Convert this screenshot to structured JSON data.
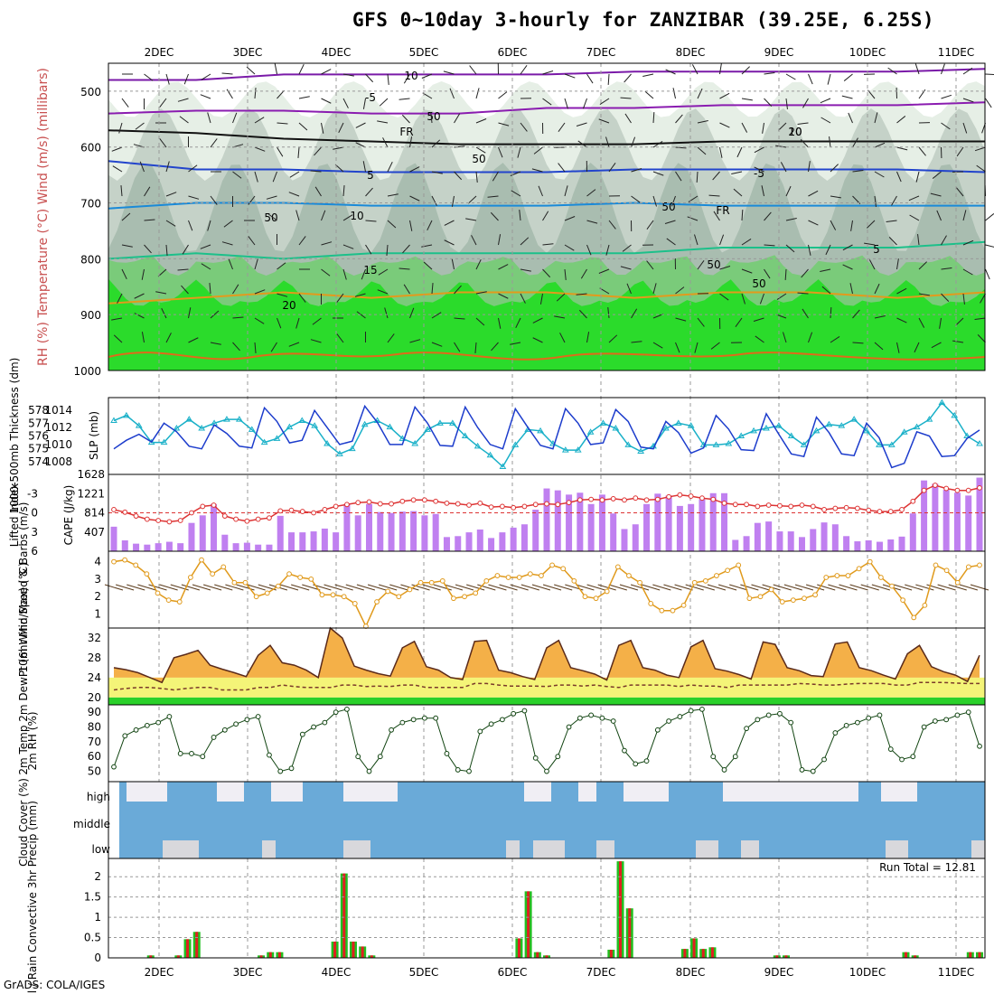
{
  "title": "GFS 0~10day 3-hourly for ZANZIBAR (39.25E, 6.25S)",
  "credit": "GrADS: COLA/IGES",
  "colors": {
    "axis": "#000000",
    "grid": "#999999",
    "slp": "#1c3ccc",
    "thk": "#19b0c8",
    "li": "#dd3333",
    "cape": "#c080f0",
    "wind10": "#e09a1c",
    "barb": "#5a3a1a",
    "temp_top": "#e05a05",
    "dew": "#f4f478",
    "rh_dark": "#0a9c0a",
    "cloud_blue": "#6aaad8",
    "cloud_white": "#f0eef4",
    "precip_green": "#20c020",
    "precip_red": "#e02020"
  },
  "chart_data": [
    {
      "type": "heatmap",
      "name": "upper-air cross section",
      "ylabel": "RH (%)  Temperature (°C)  Wind (m/s)  (millibars)",
      "y_ticks": [
        "500",
        "600",
        "700",
        "800",
        "900",
        "1000"
      ],
      "ylim": [
        1000,
        450
      ],
      "contour_labels": [
        "-5",
        "FR",
        "5",
        "10",
        "15",
        "20",
        "10",
        "50",
        "50",
        "50",
        "50",
        "50",
        "50",
        "20",
        "-5",
        "FR",
        "5",
        "10"
      ],
      "isotherms": [
        {
          "name": "-10",
          "level": [
            "480",
            "480",
            "470",
            "470",
            "470",
            "470",
            "465",
            "465",
            "465",
            "465",
            "460"
          ]
        },
        {
          "name": "-5",
          "level": [
            "540",
            "535",
            "535",
            "540",
            "540",
            "530",
            "530",
            "525",
            "525",
            "525",
            "520"
          ]
        },
        {
          "name": "FR",
          "level": [
            "570",
            "575",
            "585",
            "590",
            "595",
            "595",
            "595",
            "590",
            "590",
            "590",
            "590"
          ]
        },
        {
          "name": "5",
          "level": [
            "625",
            "640",
            "640",
            "645",
            "645",
            "645",
            "640",
            "640",
            "640",
            "640",
            "645"
          ]
        },
        {
          "name": "10",
          "level": [
            "710",
            "700",
            "700",
            "705",
            "705",
            "705",
            "700",
            "705",
            "705",
            "705",
            "705"
          ]
        },
        {
          "name": "15",
          "level": [
            "800",
            "790",
            "800",
            "790",
            "790",
            "790",
            "790",
            "780",
            "780",
            "780",
            "770"
          ]
        },
        {
          "name": "20",
          "level": [
            "880",
            "870",
            "860",
            "870",
            "860",
            "860",
            "870",
            "860",
            "860",
            "870",
            "860"
          ]
        }
      ],
      "x_days": [
        "2DEC",
        "3DEC",
        "4DEC",
        "5DEC",
        "6DEC",
        "7DEC",
        "8DEC",
        "9DEC",
        "10DEC",
        "11DEC"
      ]
    },
    {
      "type": "line",
      "name": "SLP and thickness",
      "ylabel_left": "1000-500mb Thickness (dm)",
      "ylabel_right": "SLP (mb)",
      "slp_ticks": [
        "1014",
        "1012",
        "1010",
        "1008"
      ],
      "thk_ticks": [
        "578",
        "577",
        "576",
        "575",
        "574"
      ],
      "series": [
        {
          "name": "SLP",
          "values": [
            1009.5,
            1010.5,
            1011.2,
            1010.3,
            1012.5,
            1011.5,
            1009.8,
            1009.5,
            1012.3,
            1011.3,
            1009.8,
            1009.6,
            1014.3,
            1012.7,
            1010.2,
            1010.5,
            1014,
            1012,
            1010,
            1010.4,
            1014.5,
            1012.6,
            1010,
            1010,
            1014.4,
            1012.5,
            1009.9,
            1009.8,
            1014.4,
            1012,
            1010,
            1009.5,
            1014.2,
            1012,
            1009.9,
            1009.5,
            1014.2,
            1012.5,
            1010,
            1010.2,
            1014.1,
            1012.7,
            1009.7,
            1009.5,
            1012.7,
            1011.4,
            1009,
            1009.6,
            1013.4,
            1011.8,
            1009.4,
            1009.3,
            1013.6,
            1011.2,
            1008.9,
            1008.6,
            1013.2,
            1011.4,
            1008.9,
            1008.7,
            1012.5,
            1010.8,
            1007.3,
            1007.8,
            1011.5,
            1011,
            1008.6,
            1008.7,
            1010.7,
            1011.7
          ]
        },
        {
          "name": "Thickness",
          "values": [
            577.2,
            577.6,
            576.8,
            575.5,
            575.5,
            576.6,
            577.3,
            576.6,
            577.0,
            577.3,
            577.3,
            576.5,
            575.5,
            575.8,
            576.7,
            577.2,
            576.8,
            575.4,
            574.6,
            575.0,
            576.9,
            577.2,
            576.7,
            575.8,
            575.4,
            576.5,
            577.0,
            577.0,
            576.0,
            575.2,
            574.5,
            573.6,
            575.3,
            576.5,
            576.4,
            575.4,
            574.9,
            574.9,
            576.3,
            577.0,
            576.6,
            575.3,
            574.8,
            575.2,
            576.6,
            577.0,
            576.8,
            575.3,
            575.3,
            575.4,
            576.0,
            576.4,
            576.6,
            576.8,
            576.0,
            575.3,
            576.4,
            576.9,
            576.8,
            577.3,
            576.4,
            575.3,
            575.3,
            576.3,
            576.7,
            577.3,
            578.6,
            577.6,
            576.0,
            575.4
          ]
        }
      ]
    },
    {
      "type": "bar",
      "name": "Lifted index and CAPE",
      "ylabel_left": "Lifted Index",
      "ylabel_right": "CAPE (J/kg)",
      "li_ticks": [
        "-3",
        "0",
        "3",
        "6"
      ],
      "cape_ticks": [
        "1628",
        "1221",
        "814",
        "407"
      ],
      "series": [
        {
          "name": "CAPE",
          "values": [
            520,
            230,
            160,
            140,
            170,
            200,
            170,
            600,
            760,
            1000,
            350,
            170,
            180,
            140,
            140,
            750,
            400,
            400,
            420,
            480,
            400,
            1000,
            760,
            1000,
            830,
            810,
            840,
            850,
            760,
            790,
            300,
            320,
            400,
            460,
            280,
            400,
            500,
            570,
            880,
            1330,
            1290,
            1200,
            1240,
            1000,
            1200,
            800,
            470,
            570,
            1000,
            1220,
            1180,
            960,
            1000,
            1100,
            1230,
            1230,
            240,
            320,
            600,
            630,
            420,
            420,
            300,
            470,
            610,
            570,
            320,
            210,
            230,
            200,
            250,
            310,
            800,
            1500,
            1430,
            1300,
            1240,
            1180,
            1560
          ]
        },
        {
          "name": "Lifted Index",
          "values": [
            -0.5,
            -0.1,
            0.5,
            1.0,
            1.2,
            1.4,
            1.2,
            0,
            -1.0,
            -1.2,
            0.5,
            1.0,
            1.3,
            1.0,
            0.8,
            -0.3,
            -0.4,
            -0.2,
            0,
            -0.5,
            -1.0,
            -1.3,
            -1.6,
            -1.7,
            -1.4,
            -1.4,
            -1.8,
            -2.0,
            -2.0,
            -1.8,
            -1.5,
            -1.4,
            -1.2,
            -1.5,
            -0.9,
            -1.0,
            -0.8,
            -1.0,
            -1.3,
            -1.4,
            -1.3,
            -1.6,
            -2.0,
            -2.1,
            -2.0,
            -2.2,
            -2.0,
            -2.3,
            -2.0,
            -2.1,
            -2.5,
            -2.8,
            -2.6,
            -2.3,
            -2.1,
            -1.5,
            -1.3,
            -1.3,
            -1.0,
            -1.2,
            -1.1,
            -1.0,
            -1.2,
            -1.0,
            -0.5,
            -0.7,
            -0.8,
            -0.7,
            -0.4,
            -0.2,
            -0.2,
            -0.5,
            -1.8,
            -3.5,
            -4.3,
            -3.8,
            -3.5,
            -3.5,
            -3.9
          ]
        }
      ],
      "li_ylim": [
        6,
        -6
      ],
      "cape_ylim": [
        0,
        1628
      ]
    },
    {
      "type": "line",
      "name": "10m wind",
      "ylabel": "10m Wind Speed & Barbs (m/s)",
      "y_ticks": [
        "4",
        "3",
        "2",
        "1"
      ],
      "series": [
        {
          "name": "Wind speed",
          "values": [
            4.0,
            4.1,
            3.8,
            3.3,
            2.2,
            1.8,
            1.7,
            3.1,
            4.1,
            3.3,
            3.7,
            2.8,
            2.8,
            2.0,
            2.2,
            2.6,
            3.3,
            3.1,
            3.0,
            2.1,
            2.1,
            2.0,
            1.6,
            0.3,
            1.7,
            2.3,
            2.0,
            2.4,
            2.8,
            2.8,
            2.9,
            1.9,
            2.0,
            2.2,
            2.9,
            3.2,
            3.1,
            3.1,
            3.3,
            3.2,
            3.8,
            3.6,
            2.9,
            2.0,
            1.9,
            2.3,
            3.7,
            3.2,
            2.8,
            1.6,
            1.2,
            1.2,
            1.5,
            2.8,
            2.9,
            3.2,
            3.5,
            3.8,
            1.9,
            2.0,
            2.4,
            1.7,
            1.8,
            1.9,
            2.1,
            3.1,
            3.2,
            3.2,
            3.6,
            4.0,
            3.1,
            2.6,
            1.8,
            0.8,
            1.5,
            3.8,
            3.5,
            2.8,
            3.7,
            3.8
          ]
        }
      ]
    },
    {
      "type": "area",
      "name": "2m temperature and dewpoint",
      "ylabel": "2m Temp 2m DewPt (6hr Min/Max) (°C)",
      "y_ticks": [
        "32",
        "28",
        "24",
        "20"
      ],
      "series": [
        {
          "name": "Temp",
          "values": [
            26,
            25.6,
            25,
            24,
            23,
            28,
            28.7,
            29.5,
            26.5,
            25.7,
            25,
            24.2,
            28.5,
            30.5,
            27,
            26.5,
            25.5,
            24,
            34,
            32,
            26.3,
            25.5,
            24.8,
            24.3,
            30,
            31.3,
            26.2,
            25.5,
            24,
            23.6,
            31.3,
            31.5,
            25.5,
            25,
            24.2,
            23.6,
            30,
            31.5,
            26,
            25.4,
            24.7,
            23.5,
            30.5,
            31.5,
            26,
            25.5,
            24.5,
            24.0,
            30.2,
            31.5,
            25.8,
            25.3,
            24.6,
            23.7,
            31.2,
            30.7,
            26.0,
            25.4,
            24.4,
            24.2,
            30.8,
            31.2,
            26.0,
            25.4,
            24.5,
            23.7,
            28.8,
            30.5,
            26.2,
            25.2,
            24.5,
            23.2,
            28.5
          ]
        },
        {
          "name": "DewPt",
          "values": [
            21.5,
            21.8,
            22,
            22,
            21.8,
            21.5,
            21.8,
            22,
            22,
            21.5,
            21.5,
            21.5,
            22,
            22,
            22.5,
            22.2,
            22,
            22,
            22,
            22.5,
            22.5,
            22.2,
            22.3,
            22.2,
            22.5,
            22.5,
            22,
            22,
            22,
            22,
            22.8,
            22.8,
            22.5,
            22.3,
            22.3,
            22.3,
            22.2,
            22.5,
            22.5,
            22.3,
            22.5,
            22.2,
            22,
            22.5,
            22.5,
            22.5,
            22.5,
            22.2,
            22.5,
            22.3,
            22.3,
            22,
            22.5,
            22.5,
            22.5,
            22.5,
            22.5,
            22.8,
            22.7,
            22.5,
            22.5,
            22.7,
            22.8,
            22.8,
            22.8,
            22.5,
            22.5,
            23,
            23,
            23,
            22.9,
            22.8,
            22.8
          ]
        }
      ]
    },
    {
      "type": "area",
      "name": "2m relative humidity",
      "ylabel": "2m RH (%)",
      "y_ticks": [
        "90",
        "80",
        "70",
        "60",
        "50"
      ],
      "series": [
        {
          "name": "RH",
          "values": [
            53,
            74,
            78,
            81,
            83,
            87,
            62,
            62,
            60,
            73,
            78,
            82,
            85,
            87,
            61,
            50,
            52,
            75,
            80,
            83,
            90,
            92,
            60,
            50,
            60,
            78,
            83,
            85,
            86,
            86,
            62,
            51,
            50,
            77,
            82,
            85,
            89,
            91,
            59,
            50,
            60,
            80,
            86,
            88,
            86,
            84,
            64,
            55,
            57,
            78,
            84,
            87,
            91,
            92,
            60,
            51,
            60,
            79,
            85,
            88,
            89,
            83,
            51,
            50,
            58,
            76,
            81,
            83,
            86,
            88,
            65,
            58,
            60,
            80,
            84,
            85,
            88,
            90,
            67
          ]
        }
      ]
    },
    {
      "type": "bar",
      "name": "cloud cover",
      "ylabel": "Cloud Cover (%)",
      "y_ticks": [
        "high",
        "middle",
        "low"
      ]
    },
    {
      "type": "bar",
      "name": "3hr precip",
      "ylabel": "Total / Rain Convective 3hr Precip (mm)",
      "y_ticks": [
        "2",
        "1.5",
        "1",
        "0.5",
        "0"
      ],
      "annotation": "Run Total = 12.81",
      "series": [
        {
          "name": "Total",
          "values": [
            0,
            0,
            0,
            0,
            0.06,
            0,
            0,
            0.06,
            0.46,
            0.64,
            0,
            0,
            0,
            0,
            0,
            0,
            0.06,
            0.14,
            0.14,
            0,
            0,
            0,
            0,
            0,
            0.4,
            2.08,
            0.4,
            0.28,
            0.06,
            0,
            0,
            0,
            0,
            0,
            0,
            0,
            0,
            0,
            0,
            0,
            0,
            0,
            0,
            0,
            0.48,
            1.64,
            0.14,
            0.06,
            0,
            0,
            0,
            0,
            0,
            0,
            0.2,
            2.38,
            1.22,
            0,
            0,
            0,
            0,
            0,
            0.22,
            0.48,
            0.22,
            0.26,
            0,
            0,
            0,
            0,
            0,
            0,
            0.06,
            0.06,
            0,
            0,
            0,
            0,
            0,
            0,
            0,
            0,
            0,
            0,
            0,
            0,
            0.14,
            0.06,
            0,
            0,
            0,
            0,
            0,
            0.14,
            0.14
          ]
        }
      ]
    }
  ]
}
